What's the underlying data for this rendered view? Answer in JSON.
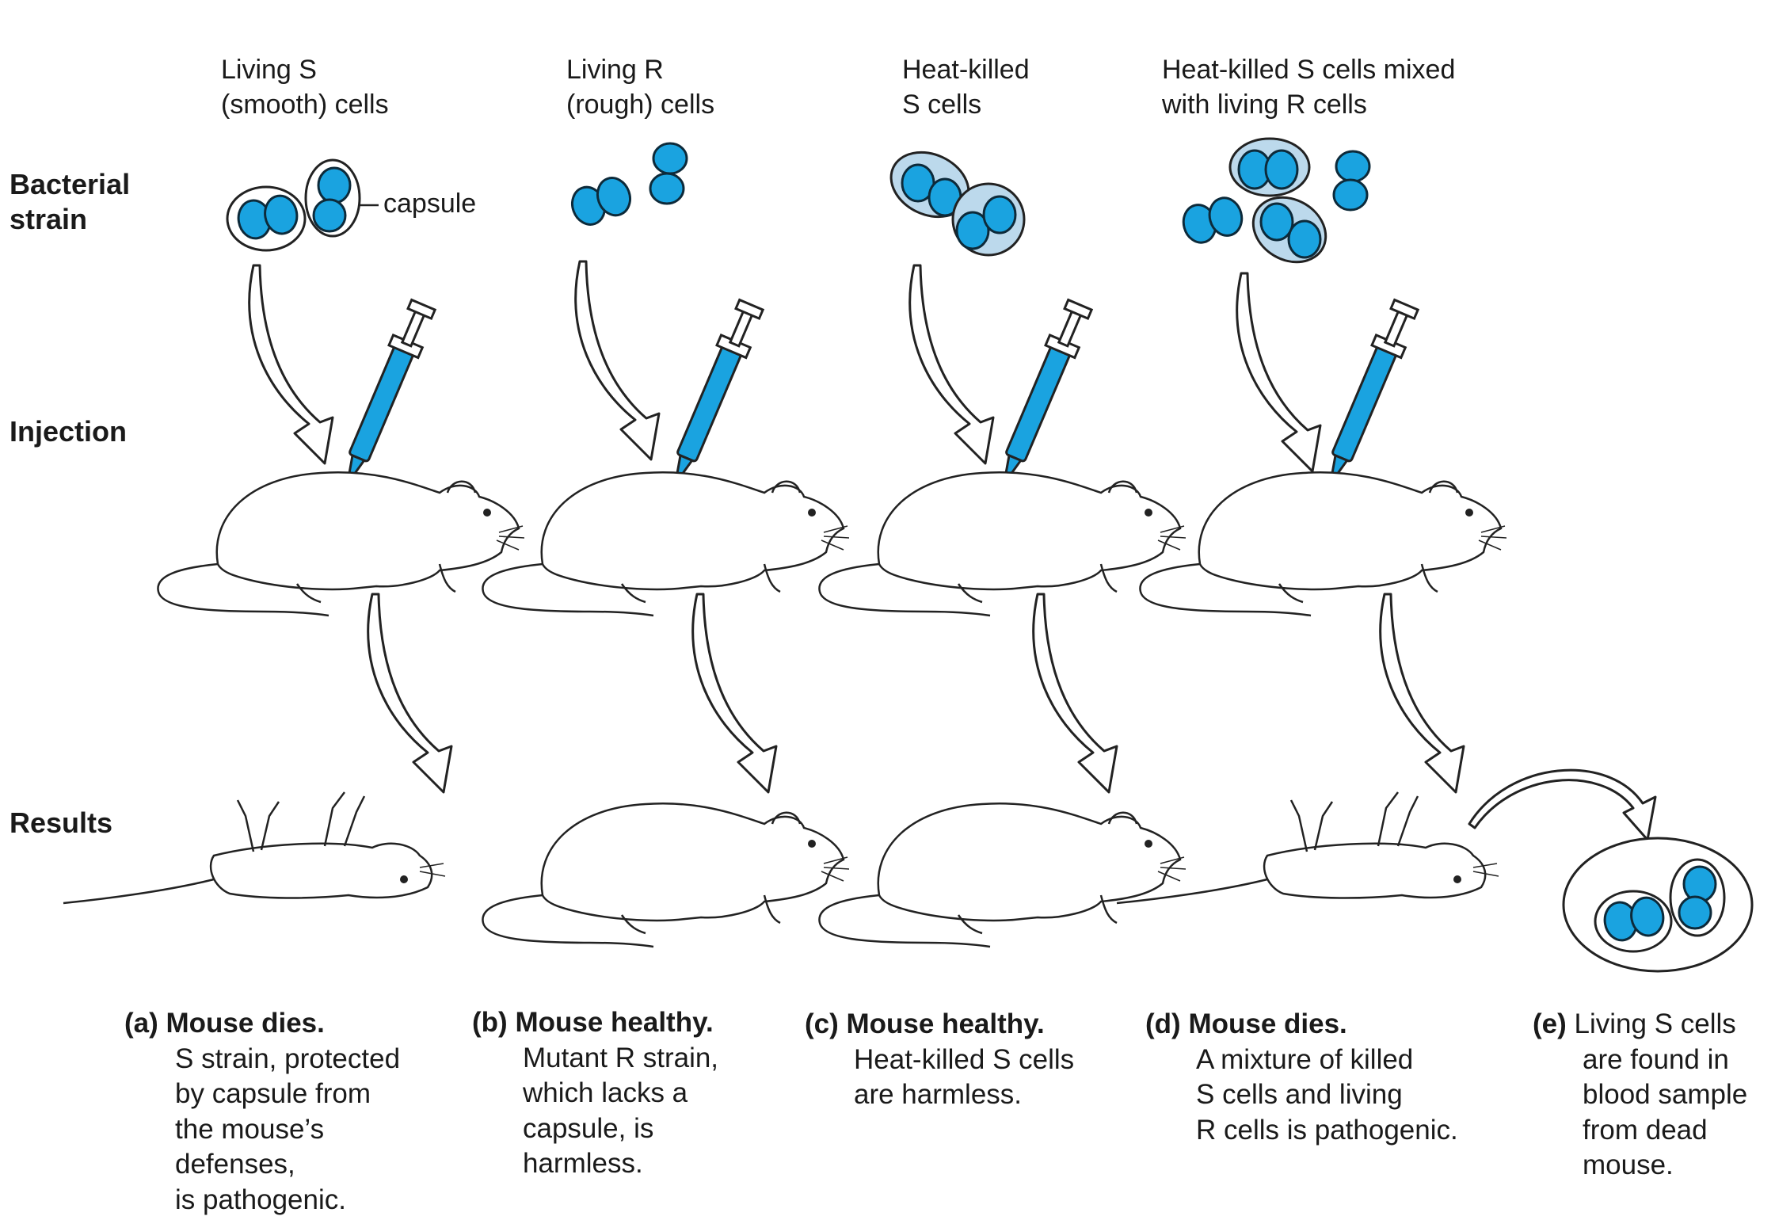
{
  "columns": [
    {
      "id": "a",
      "header": [
        "Living S",
        "(smooth) cells"
      ]
    },
    {
      "id": "b",
      "header": [
        "Living R",
        "(rough) cells"
      ]
    },
    {
      "id": "c",
      "header": [
        "Heat-killed",
        "S cells"
      ]
    },
    {
      "id": "d",
      "header": [
        "Heat-killed S cells mixed",
        "with living R cells"
      ]
    }
  ],
  "row_labels": {
    "bacterial_strain": [
      "Bacterial",
      "strain"
    ],
    "injection": "Injection",
    "results": "Results"
  },
  "capsule_label": "capsule",
  "captions": [
    {
      "letter": "(a)",
      "lead": "Mouse dies.",
      "lines": [
        "S strain, protected",
        "by capsule from",
        "the mouse’s",
        "defenses,",
        "is pathogenic."
      ]
    },
    {
      "letter": "(b)",
      "lead": "Mouse healthy.",
      "lines": [
        "Mutant R strain,",
        "which lacks a",
        "capsule, is",
        "harmless."
      ]
    },
    {
      "letter": "(c)",
      "lead": "Mouse healthy.",
      "lines": [
        "Heat-killed S cells",
        "are harmless."
      ]
    },
    {
      "letter": "(d)",
      "lead": "Mouse dies.",
      "lines": [
        "A mixture of killed",
        "S cells and living",
        "R cells is pathogenic."
      ]
    },
    {
      "letter": "(e)",
      "lead": "",
      "lines": [
        "Living S cells",
        "are found in",
        "blood sample",
        "from dead",
        "mouse."
      ]
    }
  ],
  "colors": {
    "cell_fill": "#1aa3e0",
    "cell_stroke": "#0d2a3a",
    "halo_fill": "#bcd9ec",
    "line": "#222222"
  }
}
